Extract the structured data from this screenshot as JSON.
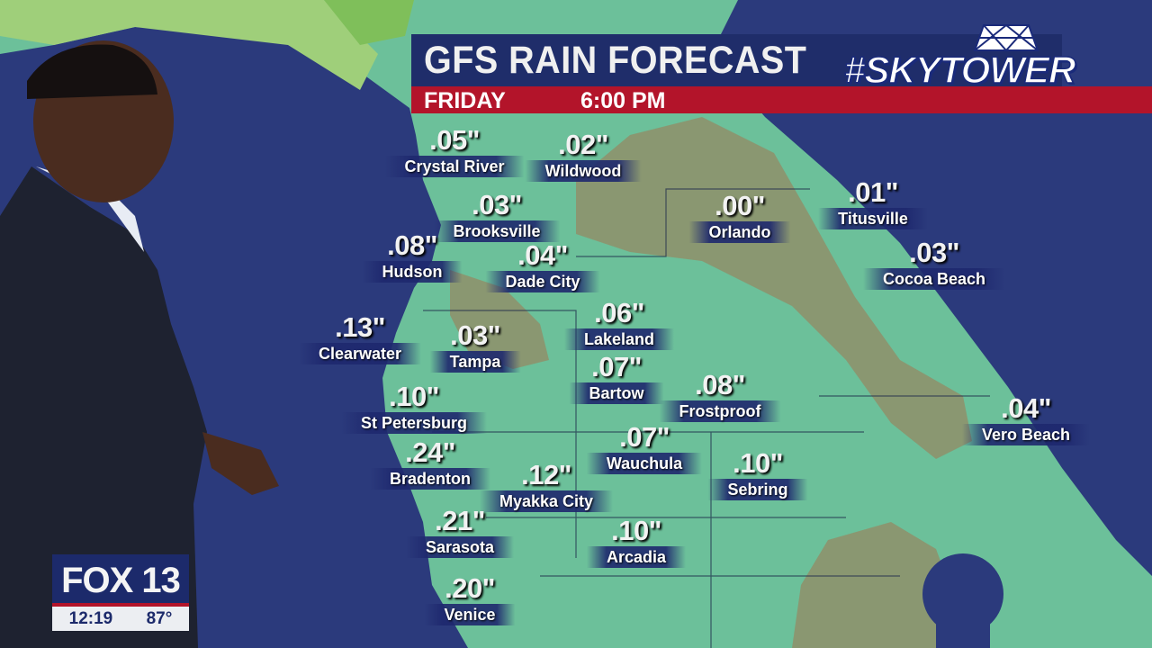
{
  "header": {
    "title": "GFS RAIN FORECAST",
    "day": "FRIDAY",
    "time": "6:00 PM",
    "brand": "#SKYTOWER"
  },
  "colors": {
    "ocean": "#2b3a7c",
    "land": "#6cc09a",
    "rain_light": "#a8c98a",
    "dry": "#8a8a6a",
    "header_blue": "#1f2d6a",
    "header_red": "#b3142a"
  },
  "bug": {
    "station": "FOX 13",
    "clock": "12:19",
    "temp": "87°"
  },
  "forecast": [
    {
      "city": "Crystal River",
      "value": ".05\""
    },
    {
      "city": "Wildwood",
      "value": ".02\""
    },
    {
      "city": "Brooksville",
      "value": ".03\""
    },
    {
      "city": "Hudson",
      "value": ".08\""
    },
    {
      "city": "Dade City",
      "value": ".04\""
    },
    {
      "city": "Orlando",
      "value": ".00\""
    },
    {
      "city": "Titusville",
      "value": ".01\""
    },
    {
      "city": "Cocoa Beach",
      "value": ".03\""
    },
    {
      "city": "Clearwater",
      "value": ".13\""
    },
    {
      "city": "Tampa",
      "value": ".03\""
    },
    {
      "city": "Lakeland",
      "value": ".06\""
    },
    {
      "city": "Bartow",
      "value": ".07\""
    },
    {
      "city": "Frostproof",
      "value": ".08\""
    },
    {
      "city": "Vero Beach",
      "value": ".04\""
    },
    {
      "city": "St Petersburg",
      "value": ".10\""
    },
    {
      "city": "Bradenton",
      "value": ".24\""
    },
    {
      "city": "Wauchula",
      "value": ".07\""
    },
    {
      "city": "Myakka City",
      "value": ".12\""
    },
    {
      "city": "Sebring",
      "value": ".10\""
    },
    {
      "city": "Sarasota",
      "value": ".21\""
    },
    {
      "city": "Arcadia",
      "value": ".10\""
    },
    {
      "city": "Venice",
      "value": ".20\""
    }
  ]
}
